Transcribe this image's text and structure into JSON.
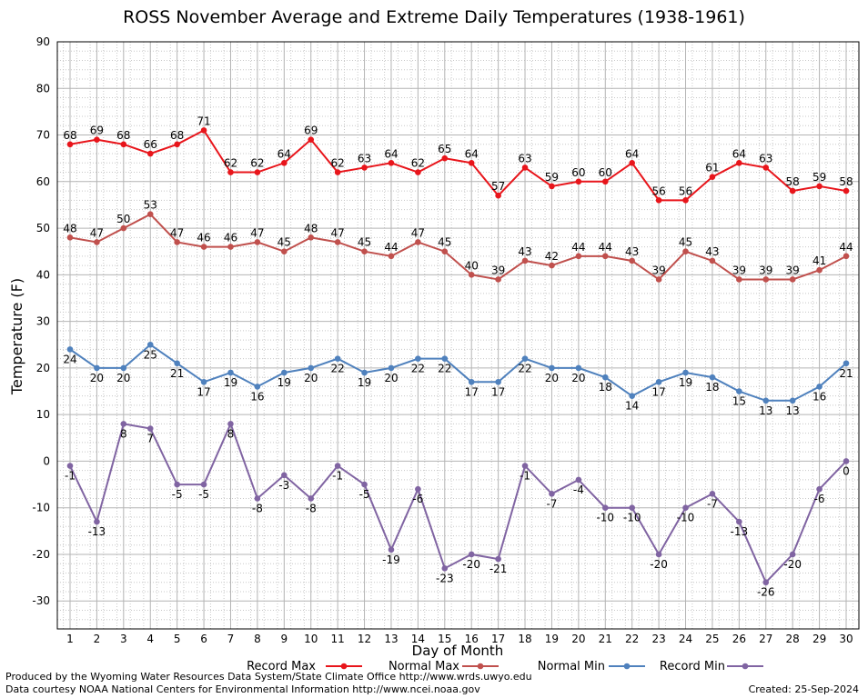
{
  "footer": {
    "produced_by": "Produced by the Wyoming Water Resources Data System/State Climate Office http://www.wrds.uwyo.edu",
    "courtesy": "Data courtesy NOAA National Centers for Environmental Information http://www.ncei.noaa.gov",
    "created": "Created:  25-Sep-2024"
  },
  "chart_data": {
    "type": "line",
    "title": "ROSS November Average and Extreme Daily Temperatures (1938-1961)",
    "xlabel": "Day of Month",
    "ylabel": "Temperature (F)",
    "xlim": [
      1,
      30
    ],
    "ylim": [
      -36,
      90
    ],
    "yticks": [
      -30,
      -20,
      -10,
      0,
      10,
      20,
      30,
      40,
      50,
      60,
      70,
      80,
      90
    ],
    "grid": true,
    "legend_position": "bottom",
    "x": [
      1,
      2,
      3,
      4,
      5,
      6,
      7,
      8,
      9,
      10,
      11,
      12,
      13,
      14,
      15,
      16,
      17,
      18,
      19,
      20,
      21,
      22,
      23,
      24,
      25,
      26,
      27,
      28,
      29,
      30
    ],
    "series": [
      {
        "name": "Record Max",
        "color": "#e8151b",
        "label_pos": "above",
        "values": [
          68,
          69,
          68,
          66,
          68,
          71,
          62,
          62,
          64,
          69,
          62,
          63,
          64,
          62,
          65,
          64,
          57,
          63,
          59,
          60,
          60,
          64,
          56,
          56,
          61,
          64,
          63,
          58,
          59,
          58
        ]
      },
      {
        "name": "Normal Max",
        "color": "#c0504d",
        "label_pos": "above",
        "values": [
          48,
          47,
          50,
          53,
          47,
          46,
          46,
          47,
          45,
          48,
          47,
          45,
          44,
          47,
          45,
          40,
          39,
          43,
          42,
          44,
          44,
          43,
          39,
          45,
          43,
          39,
          39,
          39,
          41,
          44
        ]
      },
      {
        "name": "Normal Min",
        "color": "#4f81bd",
        "label_pos": "below",
        "values": [
          24,
          20,
          20,
          25,
          21,
          17,
          19,
          16,
          19,
          20,
          22,
          19,
          20,
          22,
          22,
          17,
          17,
          22,
          20,
          20,
          18,
          14,
          17,
          19,
          18,
          15,
          13,
          13,
          16,
          21
        ]
      },
      {
        "name": "Record Min",
        "color": "#8064a2",
        "label_pos": "below",
        "values": [
          -1,
          -13,
          8,
          7,
          -5,
          -5,
          8,
          -8,
          -3,
          -8,
          -1,
          -5,
          -19,
          -6,
          -23,
          -20,
          -21,
          -1,
          -7,
          -4,
          -10,
          -10,
          -20,
          -10,
          -7,
          -13,
          -26,
          -20,
          -6,
          0
        ]
      }
    ]
  }
}
